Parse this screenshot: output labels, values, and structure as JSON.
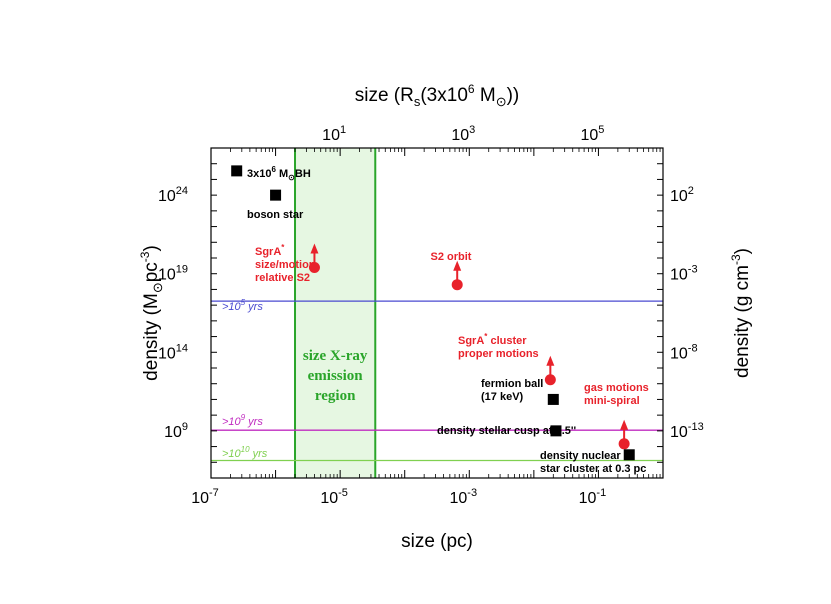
{
  "chart_data": {
    "type": "scatter",
    "x_bottom": {
      "label": "size (pc)",
      "scale": "log",
      "range": [
        1e-07,
        1
      ],
      "ticks": [
        "-7",
        "-5",
        "-3",
        "-1"
      ]
    },
    "x_top": {
      "label_base": "size (R",
      "label_sub": "s",
      "label_rest": "(3x10",
      "label_sup": "6",
      "label_unit": " M",
      "label_sun": "⊙",
      "label_close": "))",
      "scale": "log",
      "range": [
        0.1,
        1000000.0
      ],
      "ticks": [
        "1",
        "3",
        "5"
      ]
    },
    "y_left": {
      "label": "density (M",
      "label_sun": "⊙",
      "label_mid": "pc",
      "label_sup": "-3",
      "label_close": ")",
      "scale": "log",
      "range": [
        1000000.0,
        1e+27
      ],
      "ticks": [
        "24",
        "19",
        "14",
        "9"
      ]
    },
    "y_right": {
      "label": "density (g cm",
      "label_sup": "-3",
      "label_close": ")",
      "scale": "log",
      "range": [
        1e-16,
        100000.0
      ],
      "ticks": [
        "2",
        "-3",
        "-8",
        "-13"
      ]
    },
    "emission_region": {
      "x_range": [
        2e-06,
        3.5e-05
      ],
      "label_lines": [
        "size X-ray",
        "emission",
        "region"
      ],
      "color": "#2aa52a",
      "fill": "#e6f7e2"
    },
    "time_lines": [
      {
        "y": 1.8e+17,
        "label_pre": ">10",
        "label_sup": "5",
        "label_post": " yrs",
        "color": "#4a4ad0"
      },
      {
        "y": 1100000000.0,
        "label_pre": ">10",
        "label_sup": "9",
        "label_post": " yrs",
        "color": "#c02cc0"
      },
      {
        "y": 13000000.0,
        "label_pre": ">10",
        "label_sup": "10",
        "label_post": " yrs",
        "color": "#80d050"
      }
    ],
    "points": [
      {
        "name": "3x10^6 M⊙ BH",
        "x": 2.5e-07,
        "y": 3.5e+25,
        "marker": "square",
        "color": "#000000"
      },
      {
        "name": "boson star",
        "x": 1e-06,
        "y": 1e+24,
        "marker": "square",
        "color": "#000000"
      },
      {
        "name": "SgrA* size/motion relative S2",
        "x": 4e-06,
        "y": 2.5e+19,
        "marker": "circle-arrow",
        "color": "#e8222b"
      },
      {
        "name": "S2 orbit",
        "x": 0.00065,
        "y": 2e+18,
        "marker": "circle-arrow",
        "color": "#e8222b"
      },
      {
        "name": "SgrA* cluster proper motions",
        "x": 0.018,
        "y": 1800000000000.0,
        "marker": "circle-arrow",
        "color": "#e8222b"
      },
      {
        "name": "fermion ball (17 keV)",
        "x": 0.02,
        "y": 100000000000.0,
        "marker": "square",
        "color": "#000000"
      },
      {
        "name": "density stellar cusp at 0.5''",
        "x": 0.022,
        "y": 1000000000.0,
        "marker": "square",
        "color": "#000000"
      },
      {
        "name": "gas motions mini-spiral",
        "x": 0.25,
        "y": 150000000.0,
        "marker": "circle-arrow",
        "color": "#e8222b"
      },
      {
        "name": "density nuclear star cluster at 0.3 pc",
        "x": 0.3,
        "y": 30000000.0,
        "marker": "square",
        "color": "#000000"
      }
    ],
    "annotations": [
      {
        "key": "bh",
        "color": "black",
        "lines": [
          {
            "parts": [
              [
                "3x10",
                ""
              ],
              [
                "6",
                "sup"
              ],
              [
                " M",
                ""
              ],
              [
                "⊙",
                "sub"
              ],
              [
                "BH",
                ""
              ]
            ]
          }
        ]
      },
      {
        "key": "boson",
        "color": "black",
        "lines": [
          {
            "parts": [
              [
                "boson star",
                ""
              ]
            ]
          }
        ]
      },
      {
        "key": "sgra",
        "color": "red",
        "lines": [
          {
            "parts": [
              [
                "SgrA",
                ""
              ],
              [
                "*",
                "sup"
              ]
            ]
          },
          {
            "parts": [
              [
                "size/motion",
                ""
              ]
            ]
          },
          {
            "parts": [
              [
                "relative S2",
                ""
              ]
            ]
          }
        ]
      },
      {
        "key": "s2",
        "color": "red",
        "lines": [
          {
            "parts": [
              [
                "S2 orbit",
                ""
              ]
            ]
          }
        ]
      },
      {
        "key": "cluster",
        "color": "red",
        "lines": [
          {
            "parts": [
              [
                "SgrA",
                ""
              ],
              [
                "*",
                "sup"
              ],
              [
                " cluster",
                ""
              ]
            ]
          },
          {
            "parts": [
              [
                "proper motions",
                ""
              ]
            ]
          }
        ]
      },
      {
        "key": "fermion",
        "color": "black",
        "lines": [
          {
            "parts": [
              [
                "fermion ball",
                ""
              ]
            ]
          },
          {
            "parts": [
              [
                "(17 keV)",
                ""
              ]
            ]
          }
        ]
      },
      {
        "key": "cusp",
        "color": "black",
        "lines": [
          {
            "parts": [
              [
                "density stellar cusp at 0.5''",
                ""
              ]
            ]
          }
        ]
      },
      {
        "key": "gas",
        "color": "red",
        "lines": [
          {
            "parts": [
              [
                "gas motions",
                ""
              ]
            ]
          },
          {
            "parts": [
              [
                "mini-spiral",
                ""
              ]
            ]
          }
        ]
      },
      {
        "key": "nsc",
        "color": "black",
        "lines": [
          {
            "parts": [
              [
                "density nuclear",
                ""
              ]
            ]
          },
          {
            "parts": [
              [
                "star cluster at 0.3 pc",
                ""
              ]
            ]
          }
        ]
      }
    ]
  }
}
